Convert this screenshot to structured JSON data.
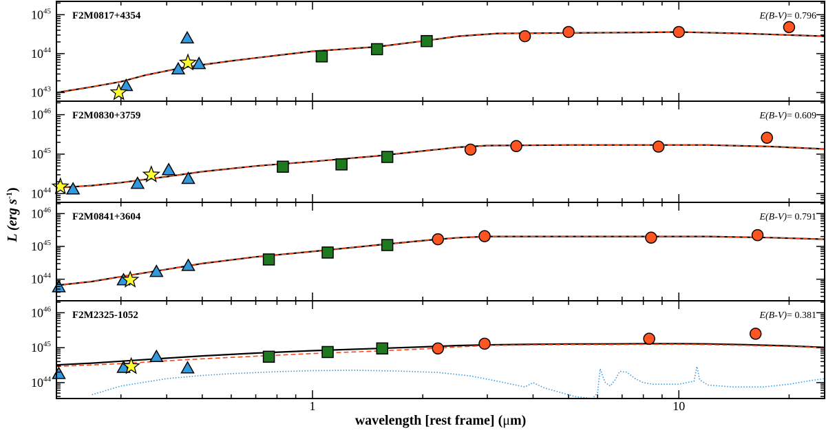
{
  "colors": {
    "star": "#ffff33",
    "triangle": "#3399dd",
    "square": "#1f7a1f",
    "circle": "#ff5522",
    "model": "#000000",
    "dashed": "#ff4411",
    "dotted": "#3399dd"
  },
  "chart_data": {
    "type": "scatter",
    "xlabel_bold": "wavelength [rest frame] (",
    "xlabel_mu": "μ",
    "xlabel_unit": "m)",
    "ylabel_main": "L (erg s",
    "ylabel_sup": "-1",
    "ylabel_close": ")",
    "xscale": "log",
    "yscale": "log",
    "xlim": [
      0.2,
      25
    ],
    "xticks": [
      {
        "value": 1,
        "label": "1"
      },
      {
        "value": 10,
        "label": "10"
      }
    ],
    "panels": [
      {
        "name": "F2M0817+4354",
        "ebv_prefix": "E(B-V)",
        "ebv_value": "= 0.796",
        "ylim": [
          6e+42,
          2.2e+45
        ],
        "yticks": [
          {
            "value": 1e+43,
            "base": "10",
            "exp": "43"
          },
          {
            "value": 1e+44,
            "base": "10",
            "exp": "44"
          },
          {
            "value": 1e+45,
            "base": "10",
            "exp": "45"
          }
        ],
        "model_curve": [
          [
            0.2,
            1e+43
          ],
          [
            0.25,
            1.4e+43
          ],
          [
            0.3,
            1.9e+43
          ],
          [
            0.35,
            2.8e+43
          ],
          [
            0.45,
            4.5e+43
          ],
          [
            0.6,
            6.5e+43
          ],
          [
            0.8,
            9e+43
          ],
          [
            1.0,
            1.15e+44
          ],
          [
            1.5,
            1.5e+44
          ],
          [
            2.0,
            2.1e+44
          ],
          [
            2.5,
            2.8e+44
          ],
          [
            3.2,
            3.3e+44
          ],
          [
            5.0,
            3.4e+44
          ],
          [
            8.0,
            3.5e+44
          ],
          [
            10.0,
            3.6e+44
          ],
          [
            15.0,
            3.3e+44
          ],
          [
            20.0,
            3e+44
          ],
          [
            25.0,
            2.8e+44
          ]
        ],
        "dashed_curve": [
          [
            0.2,
            1e+43
          ],
          [
            0.25,
            1.4e+43
          ],
          [
            0.3,
            1.9e+43
          ],
          [
            0.35,
            2.8e+43
          ],
          [
            0.45,
            4.5e+43
          ],
          [
            0.6,
            6.5e+43
          ],
          [
            0.8,
            9e+43
          ],
          [
            1.0,
            1.15e+44
          ],
          [
            1.5,
            1.5e+44
          ],
          [
            2.0,
            2.1e+44
          ],
          [
            2.5,
            2.8e+44
          ],
          [
            3.2,
            3.3e+44
          ],
          [
            5.0,
            3.4e+44
          ],
          [
            8.0,
            3.5e+44
          ],
          [
            10.0,
            3.6e+44
          ],
          [
            15.0,
            3.3e+44
          ],
          [
            20.0,
            3e+44
          ],
          [
            25.0,
            2.8e+44
          ]
        ],
        "stars": [
          [
            0.296,
            1e+43
          ],
          [
            0.457,
            5.8e+43
          ]
        ],
        "triangles": [
          [
            0.31,
            1.5e+43
          ],
          [
            0.43,
            4e+43
          ],
          [
            0.455,
            2.5e+44
          ],
          [
            0.49,
            5.5e+43
          ]
        ],
        "squares": [
          [
            1.06,
            8.5e+43
          ],
          [
            1.5,
            1.3e+44
          ],
          [
            2.05,
            2.1e+44
          ]
        ],
        "circles": [
          [
            3.8,
            2.8e+44
          ],
          [
            5.0,
            3.6e+44
          ],
          [
            10.0,
            3.6e+44
          ],
          [
            20.0,
            4.8e+44
          ]
        ]
      },
      {
        "name": "F2M0830+3759",
        "ebv_prefix": "E(B-V)",
        "ebv_value": "= 0.609",
        "ylim": [
          6e+43,
          2.2e+46
        ],
        "yticks": [
          {
            "value": 1e+44,
            "base": "10",
            "exp": "44"
          },
          {
            "value": 1e+45,
            "base": "10",
            "exp": "45"
          },
          {
            "value": 1e+46,
            "base": "10",
            "exp": "46"
          }
        ],
        "model_curve": [
          [
            0.2,
            1.4e+44
          ],
          [
            0.25,
            1.6e+44
          ],
          [
            0.3,
            1.9e+44
          ],
          [
            0.4,
            2.7e+44
          ],
          [
            0.5,
            3.6e+44
          ],
          [
            0.7,
            5e+44
          ],
          [
            1.0,
            6.5e+44
          ],
          [
            1.5,
            9e+44
          ],
          [
            2.0,
            1.2e+45
          ],
          [
            2.5,
            1.5e+45
          ],
          [
            3.0,
            1.65e+45
          ],
          [
            5.0,
            1.7e+45
          ],
          [
            8.0,
            1.7e+45
          ],
          [
            12.0,
            1.7e+45
          ],
          [
            18.0,
            1.55e+45
          ],
          [
            25.0,
            1.35e+45
          ]
        ],
        "dashed_curve": [
          [
            0.2,
            1.4e+44
          ],
          [
            0.25,
            1.6e+44
          ],
          [
            0.3,
            1.9e+44
          ],
          [
            0.4,
            2.7e+44
          ],
          [
            0.5,
            3.6e+44
          ],
          [
            0.7,
            5e+44
          ],
          [
            1.0,
            6.5e+44
          ],
          [
            1.5,
            9e+44
          ],
          [
            2.0,
            1.2e+45
          ],
          [
            2.5,
            1.5e+45
          ],
          [
            3.0,
            1.65e+45
          ],
          [
            5.0,
            1.7e+45
          ],
          [
            8.0,
            1.7e+45
          ],
          [
            12.0,
            1.7e+45
          ],
          [
            18.0,
            1.55e+45
          ],
          [
            25.0,
            1.35e+45
          ]
        ],
        "stars": [
          [
            0.205,
            1.5e+44
          ],
          [
            0.363,
            3e+44
          ]
        ],
        "triangles": [
          [
            0.222,
            1.3e+44
          ],
          [
            0.333,
            1.8e+44
          ],
          [
            0.405,
            4e+44
          ],
          [
            0.458,
            2.4e+44
          ]
        ],
        "squares": [
          [
            0.83,
            4.8e+44
          ],
          [
            1.2,
            5.5e+44
          ],
          [
            1.6,
            8.5e+44
          ]
        ],
        "circles": [
          [
            2.7,
            1.3e+45
          ],
          [
            3.6,
            1.6e+45
          ],
          [
            8.8,
            1.55e+45
          ],
          [
            17.4,
            2.6e+45
          ]
        ]
      },
      {
        "name": "F2M0841+3604",
        "ebv_prefix": "E(B-V)",
        "ebv_value": "= 0.791",
        "ylim": [
          2.2e+43,
          2.2e+46
        ],
        "yticks": [
          {
            "value": 1e+44,
            "base": "10",
            "exp": "44"
          },
          {
            "value": 1e+45,
            "base": "10",
            "exp": "45"
          },
          {
            "value": 1e+46,
            "base": "10",
            "exp": "46"
          }
        ],
        "model_curve": [
          [
            0.2,
            6.5e+43
          ],
          [
            0.25,
            8.5e+43
          ],
          [
            0.3,
            1.2e+44
          ],
          [
            0.4,
            2e+44
          ],
          [
            0.5,
            3e+44
          ],
          [
            0.7,
            4.8e+44
          ],
          [
            1.0,
            7e+44
          ],
          [
            1.5,
            1.1e+45
          ],
          [
            2.0,
            1.5e+45
          ],
          [
            2.5,
            1.85e+45
          ],
          [
            3.0,
            2e+45
          ],
          [
            5.0,
            2e+45
          ],
          [
            8.0,
            2e+45
          ],
          [
            12.0,
            2e+45
          ],
          [
            18.0,
            1.85e+45
          ],
          [
            25.0,
            1.65e+45
          ]
        ],
        "dashed_curve": [
          [
            0.2,
            6.5e+43
          ],
          [
            0.25,
            8.5e+43
          ],
          [
            0.3,
            1.2e+44
          ],
          [
            0.4,
            2e+44
          ],
          [
            0.5,
            3e+44
          ],
          [
            0.7,
            4.8e+44
          ],
          [
            1.0,
            7e+44
          ],
          [
            1.5,
            1.1e+45
          ],
          [
            2.0,
            1.5e+45
          ],
          [
            2.5,
            1.85e+45
          ],
          [
            3.0,
            2e+45
          ],
          [
            5.0,
            2e+45
          ],
          [
            8.0,
            2e+45
          ],
          [
            12.0,
            2e+45
          ],
          [
            18.0,
            1.85e+45
          ],
          [
            25.0,
            1.65e+45
          ]
        ],
        "stars": [
          [
            0.318,
            9.5e+43
          ]
        ],
        "triangles": [
          [
            0.203,
            5.8e+43
          ],
          [
            0.305,
            9.5e+43
          ],
          [
            0.375,
            1.7e+44
          ],
          [
            0.458,
            2.6e+44
          ]
        ],
        "squares": [
          [
            0.76,
            4e+44
          ],
          [
            1.1,
            6.5e+44
          ],
          [
            1.6,
            1.1e+45
          ]
        ],
        "circles": [
          [
            2.2,
            1.65e+45
          ],
          [
            2.95,
            2.05e+45
          ],
          [
            8.4,
            1.85e+45
          ],
          [
            16.4,
            2.2e+45
          ]
        ]
      },
      {
        "name": "F2M2325-1052",
        "ebv_prefix": "E(B-V)",
        "ebv_value": "= 0.381",
        "ylim": [
          3.5e+43,
          2.2e+46
        ],
        "yticks": [
          {
            "value": 1e+44,
            "base": "10",
            "exp": "44"
          },
          {
            "value": 1e+45,
            "base": "10",
            "exp": "45"
          },
          {
            "value": 1e+46,
            "base": "10",
            "exp": "46"
          }
        ],
        "model_curve": [
          [
            0.2,
            3.2e+44
          ],
          [
            0.25,
            3.6e+44
          ],
          [
            0.3,
            4.1e+44
          ],
          [
            0.4,
            5e+44
          ],
          [
            0.5,
            5.8e+44
          ],
          [
            0.7,
            7e+44
          ],
          [
            1.0,
            8.2e+44
          ],
          [
            1.5,
            9.5e+44
          ],
          [
            2.0,
            1.05e+45
          ],
          [
            2.5,
            1.15e+45
          ],
          [
            3.0,
            1.2e+45
          ],
          [
            4.0,
            1.25e+45
          ],
          [
            5.0,
            1.27e+45
          ],
          [
            6.5,
            1.28e+45
          ],
          [
            8.0,
            1.3e+45
          ],
          [
            10.0,
            1.3e+45
          ],
          [
            12.0,
            1.28e+45
          ],
          [
            15.0,
            1.22e+45
          ],
          [
            20.0,
            1.12e+45
          ],
          [
            25.0,
            1.02e+45
          ]
        ],
        "dashed_curve": [
          [
            0.2,
            2.9e+44
          ],
          [
            0.25,
            3.2e+44
          ],
          [
            0.3,
            3.5e+44
          ],
          [
            0.4,
            4.2e+44
          ],
          [
            0.5,
            4.8e+44
          ],
          [
            0.7,
            5.7e+44
          ],
          [
            1.0,
            6.8e+44
          ],
          [
            1.5,
            8e+44
          ],
          [
            2.0,
            9.2e+44
          ],
          [
            2.5,
            1.05e+45
          ],
          [
            3.0,
            1.15e+45
          ],
          [
            4.0,
            1.2e+45
          ],
          [
            5.0,
            1.22e+45
          ],
          [
            6.5,
            1.22e+45
          ],
          [
            8.0,
            1.25e+45
          ],
          [
            10.0,
            1.25e+45
          ],
          [
            12.0,
            1.22e+45
          ],
          [
            15.0,
            1.17e+45
          ],
          [
            20.0,
            1.08e+45
          ],
          [
            25.0,
            1e+45
          ]
        ],
        "dotted_curve": [
          [
            0.25,
            4.5e+43
          ],
          [
            0.3,
            8e+43
          ],
          [
            0.4,
            1.3e+44
          ],
          [
            0.5,
            1.6e+44
          ],
          [
            0.6,
            1.8e+44
          ],
          [
            0.8,
            2.05e+44
          ],
          [
            1.0,
            2.2e+44
          ],
          [
            1.3,
            2.25e+44
          ],
          [
            1.7,
            2.15e+44
          ],
          [
            2.2,
            1.95e+44
          ],
          [
            2.7,
            1.55e+44
          ],
          [
            3.2,
            1.1e+44
          ],
          [
            3.8,
            7.5e+43
          ],
          [
            4.0,
            1e+44
          ],
          [
            4.3,
            7e+43
          ],
          [
            5.2,
            4e+43
          ],
          [
            5.8,
            3.5e+43
          ],
          [
            6.0,
            5e+43
          ],
          [
            6.1,
            2.5e+44
          ],
          [
            6.2,
            1.5e+44
          ],
          [
            6.3,
            1e+44
          ],
          [
            6.5,
            8e+43
          ],
          [
            6.7,
            1.2e+44
          ],
          [
            6.9,
            2.1e+44
          ],
          [
            7.2,
            2e+44
          ],
          [
            7.6,
            1.3e+44
          ],
          [
            8.0,
            1e+44
          ],
          [
            8.5,
            9e+43
          ],
          [
            10.0,
            9e+43
          ],
          [
            11.0,
            1.1e+44
          ],
          [
            11.2,
            2.9e+44
          ],
          [
            11.4,
            1.2e+44
          ],
          [
            12.0,
            8.5e+43
          ],
          [
            14.0,
            7.5e+43
          ],
          [
            17.0,
            7.5e+43
          ],
          [
            20.0,
            9e+43
          ],
          [
            23.0,
            1.15e+44
          ],
          [
            25.0,
            1.3e+44
          ]
        ],
        "stars": [
          [
            0.32,
            2.9e+44
          ]
        ],
        "triangles": [
          [
            0.203,
            1.8e+44
          ],
          [
            0.305,
            2.7e+44
          ],
          [
            0.375,
            5.5e+44
          ],
          [
            0.456,
            2.6e+44
          ]
        ],
        "squares": [
          [
            0.76,
            5.5e+44
          ],
          [
            1.1,
            7.5e+44
          ],
          [
            1.55,
            9.5e+44
          ]
        ],
        "circles": [
          [
            2.2,
            9.5e+44
          ],
          [
            2.95,
            1.3e+45
          ],
          [
            8.3,
            1.8e+45
          ],
          [
            16.2,
            2.5e+45
          ]
        ]
      }
    ]
  }
}
